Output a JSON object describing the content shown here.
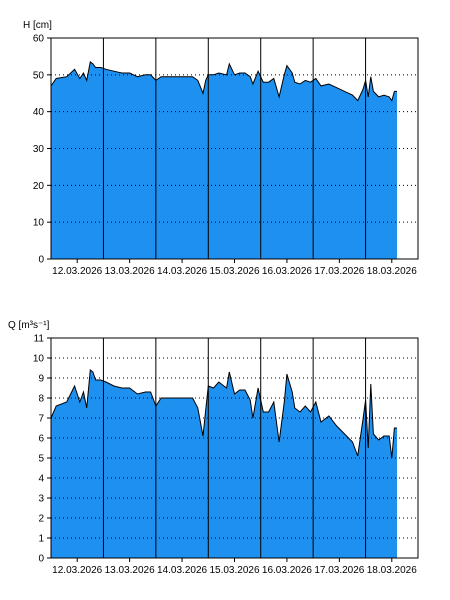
{
  "chart_data": [
    {
      "type": "area",
      "ylabel": "H [cm]",
      "ylim": [
        0,
        60
      ],
      "yticks": [
        0,
        10,
        20,
        30,
        40,
        50,
        60
      ],
      "ytick_labels": [
        "0",
        "10",
        "20",
        "30",
        "40",
        "50",
        "60"
      ],
      "xlim": [
        0,
        7
      ],
      "xticks": [
        0.5,
        1.5,
        2.5,
        3.5,
        4.5,
        5.5,
        6.5
      ],
      "xtick_labels": [
        "12.03.2026",
        "13.03.2026",
        "14.03.2026",
        "15.03.2026",
        "16.03.2026",
        "17.03.2026",
        "18.03.2026"
      ],
      "day_lines": [
        1,
        2,
        3,
        4,
        5,
        6
      ],
      "fill_color": "#1e90f0",
      "grid": "dotted-horizontal",
      "series": [
        {
          "x": [
            0,
            0.1,
            0.3,
            0.45,
            0.55,
            0.62,
            0.68,
            0.75,
            0.8,
            0.85,
            0.95,
            1.05,
            1.2,
            1.35,
            1.5,
            1.65,
            1.8,
            1.9,
            2.0,
            2.1,
            2.3,
            2.5,
            2.7,
            2.8,
            2.9,
            2.95,
            3.0,
            3.1,
            3.2,
            3.35,
            3.4,
            3.5,
            3.6,
            3.7,
            3.8,
            3.85,
            3.95,
            4.05,
            4.15,
            4.25,
            4.35,
            4.45,
            4.5,
            4.6,
            4.65,
            4.75,
            4.85,
            4.95,
            5.05,
            5.15,
            5.3,
            5.45,
            5.6,
            5.75,
            5.85,
            5.95,
            6.0,
            6.05,
            6.1,
            6.15,
            6.25,
            6.35,
            6.45,
            6.5,
            6.55,
            6.6
          ],
          "y": [
            47,
            49,
            49.5,
            51.5,
            49,
            50.5,
            48.5,
            53.5,
            53,
            52,
            52,
            51.5,
            51,
            50.5,
            50.5,
            49.5,
            50,
            50,
            48.5,
            49.5,
            49.5,
            49.5,
            49.5,
            48.5,
            45,
            48.5,
            50,
            50,
            50.5,
            50,
            53,
            50,
            50.5,
            50.5,
            49.5,
            47.5,
            51,
            48,
            48,
            49,
            44,
            50,
            52.5,
            50.5,
            48,
            47.5,
            48.5,
            48,
            49,
            47,
            47.5,
            46.5,
            45.5,
            44.5,
            43,
            46,
            48.5,
            44,
            49.5,
            45.5,
            44,
            44.5,
            44,
            43,
            45.5,
            45.5
          ]
        }
      ]
    },
    {
      "type": "area",
      "ylabel": "Q [m³s⁻¹]",
      "ylim": [
        0,
        11
      ],
      "yticks": [
        0,
        1,
        2,
        3,
        4,
        5,
        6,
        7,
        8,
        9,
        10,
        11
      ],
      "ytick_labels": [
        "0",
        "1",
        "2",
        "3",
        "4",
        "5",
        "6",
        "7",
        "8",
        "9",
        "10",
        "11"
      ],
      "xlim": [
        0,
        7
      ],
      "xticks": [
        0.5,
        1.5,
        2.5,
        3.5,
        4.5,
        5.5,
        6.5
      ],
      "xtick_labels": [
        "12.03.2026",
        "13.03.2026",
        "14.03.2026",
        "15.03.2026",
        "16.03.2026",
        "17.03.2026",
        "18.03.2026"
      ],
      "day_lines": [
        1,
        2,
        3,
        4,
        5,
        6
      ],
      "fill_color": "#1e90f0",
      "grid": "dotted-horizontal",
      "series": [
        {
          "x": [
            0,
            0.1,
            0.3,
            0.45,
            0.55,
            0.62,
            0.68,
            0.75,
            0.8,
            0.85,
            0.95,
            1.05,
            1.2,
            1.35,
            1.5,
            1.65,
            1.8,
            1.9,
            2.0,
            2.1,
            2.3,
            2.5,
            2.7,
            2.8,
            2.9,
            2.95,
            3.0,
            3.1,
            3.2,
            3.35,
            3.4,
            3.5,
            3.6,
            3.7,
            3.8,
            3.85,
            3.95,
            4.05,
            4.15,
            4.25,
            4.35,
            4.45,
            4.5,
            4.6,
            4.65,
            4.75,
            4.85,
            4.95,
            5.05,
            5.15,
            5.3,
            5.45,
            5.6,
            5.75,
            5.85,
            5.95,
            6.0,
            6.05,
            6.1,
            6.15,
            6.25,
            6.35,
            6.45,
            6.5,
            6.55,
            6.6
          ],
          "y": [
            7,
            7.6,
            7.8,
            8.6,
            7.8,
            8.3,
            7.5,
            9.4,
            9.3,
            8.9,
            8.9,
            8.8,
            8.6,
            8.5,
            8.5,
            8.2,
            8.3,
            8.3,
            7.6,
            8.0,
            8.0,
            8.0,
            8.0,
            7.5,
            6.1,
            7.4,
            8.6,
            8.5,
            8.8,
            8.5,
            9.3,
            8.2,
            8.4,
            8.4,
            7.9,
            7.0,
            8.5,
            7.3,
            7.3,
            7.8,
            5.8,
            7.8,
            9.2,
            8.3,
            7.5,
            7.3,
            7.6,
            7.3,
            7.8,
            6.8,
            7.1,
            6.6,
            6.2,
            5.8,
            5.1,
            6.9,
            7.9,
            5.5,
            8.7,
            6.2,
            5.9,
            6.1,
            6.1,
            5.0,
            6.5,
            6.5
          ]
        }
      ]
    }
  ]
}
